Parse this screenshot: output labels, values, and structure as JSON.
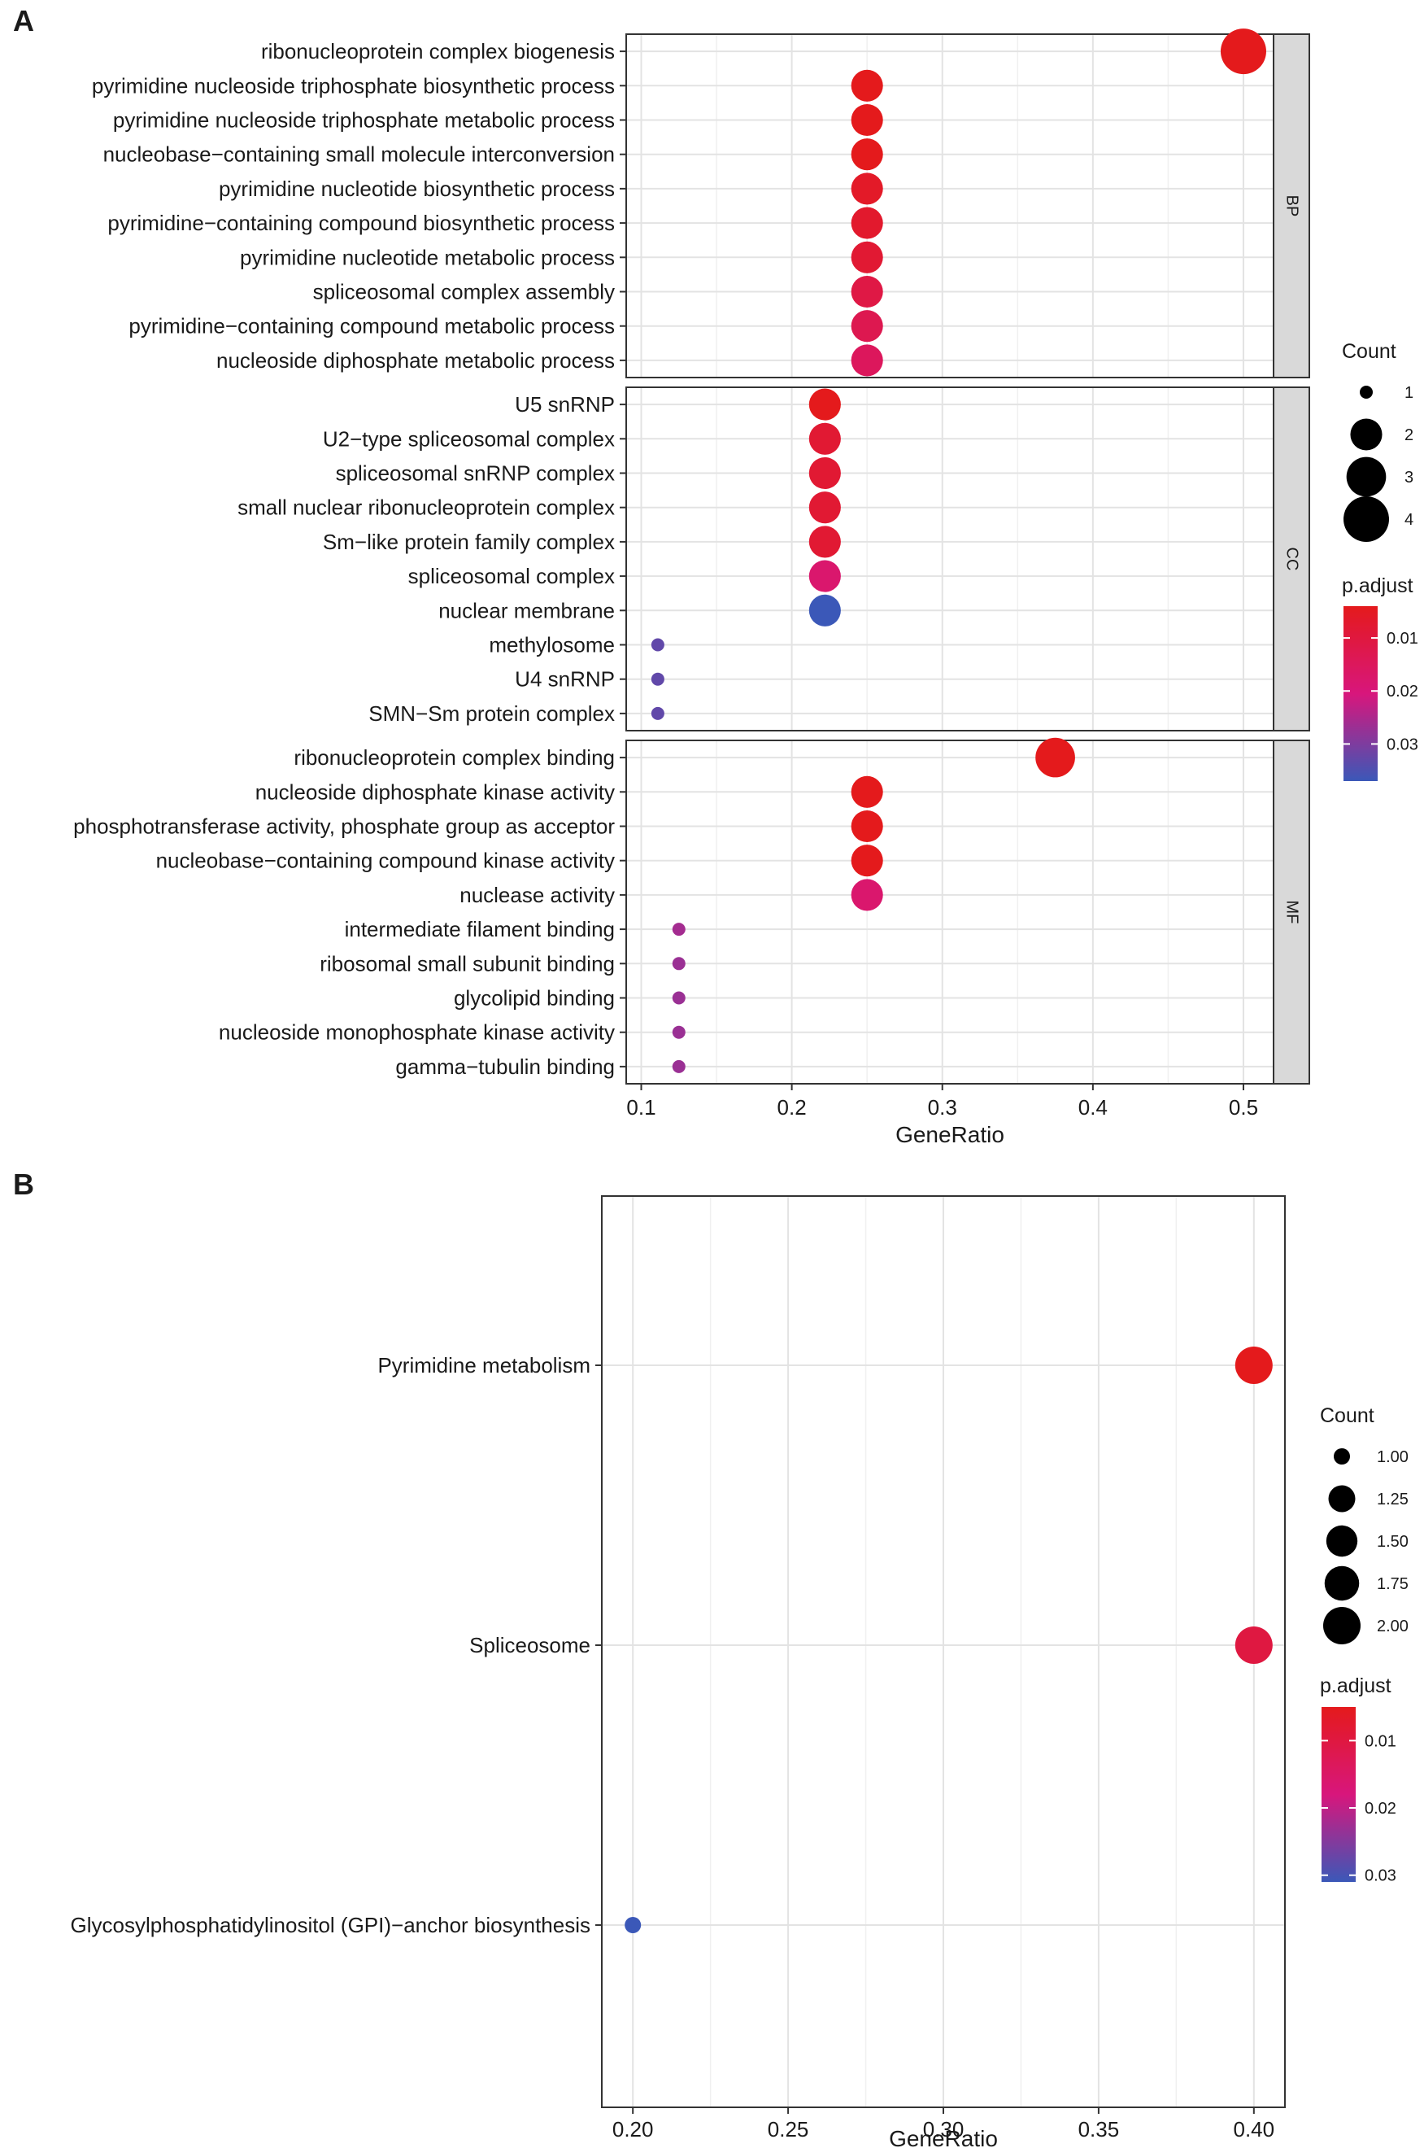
{
  "panels": {
    "a": {
      "label": "A"
    },
    "b": {
      "label": "B"
    }
  },
  "chart_data": [
    {
      "type": "scatter",
      "title": "",
      "xlabel": "GeneRatio",
      "ylabel": "",
      "xlim": [
        0.09,
        0.52
      ],
      "x_ticks": [
        0.1,
        0.2,
        0.3,
        0.4,
        0.5
      ],
      "x_tick_labels": [
        "0.1",
        "0.2",
        "0.3",
        "0.4",
        "0.5"
      ],
      "grid": true,
      "facets": [
        {
          "name": "BP",
          "terms": [
            {
              "term": "ribonucleoprotein complex biogenesis",
              "gene_ratio": 0.5,
              "count": 4,
              "p_adjust": 0.004
            },
            {
              "term": "pyrimidine nucleoside triphosphate biosynthetic process",
              "gene_ratio": 0.25,
              "count": 2,
              "p_adjust": 0.004
            },
            {
              "term": "pyrimidine nucleoside triphosphate metabolic process",
              "gene_ratio": 0.25,
              "count": 2,
              "p_adjust": 0.004
            },
            {
              "term": "nucleobase−containing small molecule interconversion",
              "gene_ratio": 0.25,
              "count": 2,
              "p_adjust": 0.004
            },
            {
              "term": "pyrimidine nucleotide biosynthetic process",
              "gene_ratio": 0.25,
              "count": 2,
              "p_adjust": 0.006
            },
            {
              "term": "pyrimidine−containing compound biosynthetic process",
              "gene_ratio": 0.25,
              "count": 2,
              "p_adjust": 0.007
            },
            {
              "term": "pyrimidine nucleotide metabolic process",
              "gene_ratio": 0.25,
              "count": 2,
              "p_adjust": 0.008
            },
            {
              "term": "spliceosomal complex assembly",
              "gene_ratio": 0.25,
              "count": 2,
              "p_adjust": 0.011
            },
            {
              "term": "pyrimidine−containing compound metabolic process",
              "gene_ratio": 0.25,
              "count": 2,
              "p_adjust": 0.013
            },
            {
              "term": "nucleoside diphosphate metabolic process",
              "gene_ratio": 0.25,
              "count": 2,
              "p_adjust": 0.015
            }
          ]
        },
        {
          "name": "CC",
          "terms": [
            {
              "term": "U5 snRNP",
              "gene_ratio": 0.222,
              "count": 2,
              "p_adjust": 0.004
            },
            {
              "term": "U2−type spliceosomal complex",
              "gene_ratio": 0.222,
              "count": 2,
              "p_adjust": 0.008
            },
            {
              "term": "spliceosomal snRNP complex",
              "gene_ratio": 0.222,
              "count": 2,
              "p_adjust": 0.008
            },
            {
              "term": "small nuclear ribonucleoprotein complex",
              "gene_ratio": 0.222,
              "count": 2,
              "p_adjust": 0.008
            },
            {
              "term": "Sm−like protein family complex",
              "gene_ratio": 0.222,
              "count": 2,
              "p_adjust": 0.008
            },
            {
              "term": "spliceosomal complex",
              "gene_ratio": 0.222,
              "count": 2,
              "p_adjust": 0.018
            },
            {
              "term": "nuclear membrane",
              "gene_ratio": 0.222,
              "count": 2,
              "p_adjust": 0.037
            },
            {
              "term": "methylosome",
              "gene_ratio": 0.111,
              "count": 1,
              "p_adjust": 0.033
            },
            {
              "term": "U4 snRNP",
              "gene_ratio": 0.111,
              "count": 1,
              "p_adjust": 0.033
            },
            {
              "term": "SMN−Sm protein complex",
              "gene_ratio": 0.111,
              "count": 1,
              "p_adjust": 0.033
            }
          ]
        },
        {
          "name": "MF",
          "terms": [
            {
              "term": "ribonucleoprotein complex binding",
              "gene_ratio": 0.375,
              "count": 3,
              "p_adjust": 0.004
            },
            {
              "term": "nucleoside diphosphate kinase activity",
              "gene_ratio": 0.25,
              "count": 2,
              "p_adjust": 0.004
            },
            {
              "term": "phosphotransferase activity, phosphate group as acceptor",
              "gene_ratio": 0.25,
              "count": 2,
              "p_adjust": 0.004
            },
            {
              "term": "nucleobase−containing compound kinase activity",
              "gene_ratio": 0.25,
              "count": 2,
              "p_adjust": 0.004
            },
            {
              "term": "nuclease activity",
              "gene_ratio": 0.25,
              "count": 2,
              "p_adjust": 0.018
            },
            {
              "term": "intermediate filament binding",
              "gene_ratio": 0.125,
              "count": 1,
              "p_adjust": 0.026
            },
            {
              "term": "ribosomal small subunit binding",
              "gene_ratio": 0.125,
              "count": 1,
              "p_adjust": 0.027
            },
            {
              "term": "glycolipid binding",
              "gene_ratio": 0.125,
              "count": 1,
              "p_adjust": 0.027
            },
            {
              "term": "nucleoside monophosphate kinase activity",
              "gene_ratio": 0.125,
              "count": 1,
              "p_adjust": 0.027
            },
            {
              "term": "gamma−tubulin binding",
              "gene_ratio": 0.125,
              "count": 1,
              "p_adjust": 0.027
            }
          ]
        }
      ],
      "size_legend": {
        "title": "Count",
        "breaks": [
          1,
          2,
          3,
          4
        ],
        "labels": [
          "1",
          "2",
          "3",
          "4"
        ]
      },
      "color_legend": {
        "title": "p.adjust",
        "domain": [
          0.004,
          0.037
        ],
        "breaks": [
          0.01,
          0.02,
          0.03
        ],
        "labels": [
          "0.01",
          "0.02",
          "0.03"
        ],
        "low_color": "#e41a1c",
        "high_color": "#3b58b8"
      }
    },
    {
      "type": "scatter",
      "title": "",
      "xlabel": "GeneRatio",
      "ylabel": "",
      "xlim": [
        0.19,
        0.41
      ],
      "x_ticks": [
        0.2,
        0.25,
        0.3,
        0.35,
        0.4
      ],
      "x_tick_labels": [
        "0.20",
        "0.25",
        "0.30",
        "0.35",
        "0.40"
      ],
      "grid": true,
      "terms": [
        {
          "term": "Pyrimidine metabolism",
          "gene_ratio": 0.4,
          "count": 2,
          "p_adjust": 0.005
        },
        {
          "term": "Spliceosome",
          "gene_ratio": 0.4,
          "count": 2,
          "p_adjust": 0.01
        },
        {
          "term": "Glycosylphosphatidylinositol (GPI)−anchor biosynthesis",
          "gene_ratio": 0.2,
          "count": 1,
          "p_adjust": 0.031
        }
      ],
      "size_legend": {
        "title": "Count",
        "breaks": [
          1.0,
          1.25,
          1.5,
          1.75,
          2.0
        ],
        "labels": [
          "1.00",
          "1.25",
          "1.50",
          "1.75",
          "2.00"
        ]
      },
      "color_legend": {
        "title": "p.adjust",
        "domain": [
          0.005,
          0.031
        ],
        "breaks": [
          0.01,
          0.02,
          0.03
        ],
        "labels": [
          "0.01",
          "0.02",
          "0.03"
        ],
        "low_color": "#e41a1c",
        "high_color": "#3b58b8"
      }
    }
  ]
}
